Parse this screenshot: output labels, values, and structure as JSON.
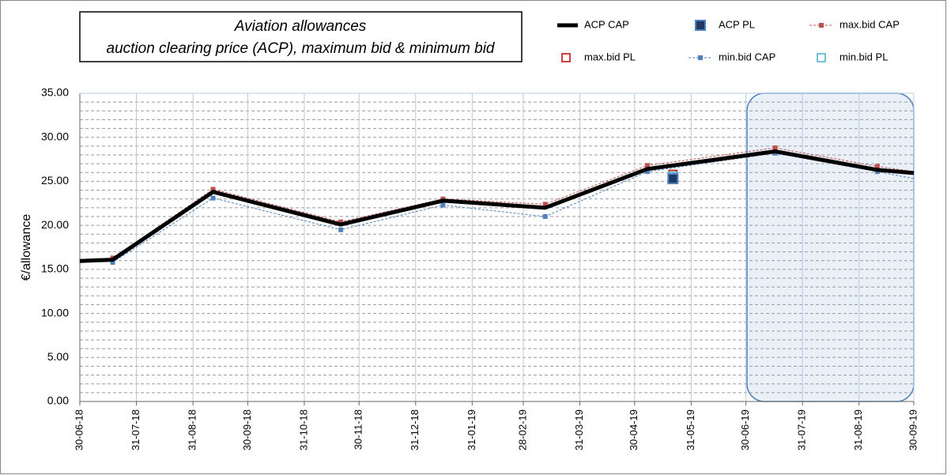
{
  "chart_data": {
    "type": "line",
    "title": [
      "Aviation allowances",
      "auction clearing price (ACP), maximum bid & minimum bid"
    ],
    "y_label": "€/allowance",
    "xlim": [
      "30-06-18",
      "30-09-19"
    ],
    "xticks": [
      "30-06-18",
      "31-07-18",
      "31-08-18",
      "30-09-18",
      "31-10-18",
      "30-11-18",
      "31-12-18",
      "31-01-19",
      "28-02-19",
      "31-03-19",
      "30-04-19",
      "31-05-19",
      "30-06-19",
      "31-07-19",
      "31-08-19",
      "30-09-19"
    ],
    "ylim": [
      0,
      35
    ],
    "yticks": [
      {
        "value": 0,
        "label": "0.00"
      },
      {
        "value": 5,
        "label": "5.00"
      },
      {
        "value": 10,
        "label": "10.00"
      },
      {
        "value": 15,
        "label": "15.00"
      },
      {
        "value": 20,
        "label": "20.00"
      },
      {
        "value": 25,
        "label": "25.00"
      },
      {
        "value": 30,
        "label": "30.00"
      },
      {
        "value": 35,
        "label": "35.00"
      }
    ],
    "grid": true,
    "legend": "top-right",
    "series": [
      {
        "name": "ACP CAP",
        "style": "thick-line",
        "color": "#000000",
        "x": [
          "30-06-18",
          "18-07-18",
          "11-09-18",
          "20-11-18",
          "15-01-19",
          "12-03-19",
          "07-05-19",
          "16-07-19",
          "10-09-19",
          "30-09-19"
        ],
        "values": [
          15.95,
          16.1,
          23.8,
          20.1,
          22.8,
          22.0,
          26.4,
          28.4,
          26.3,
          25.95
        ]
      },
      {
        "name": "ACP PL",
        "style": "filled-square",
        "color": "#1f3864",
        "x": [
          "21-05-19"
        ],
        "values": [
          25.3
        ]
      },
      {
        "name": "max.bid CAP",
        "style": "dashed-marker",
        "color": "#c0504d",
        "x": [
          "18-07-18",
          "11-09-18",
          "20-11-18",
          "15-01-19",
          "12-03-19",
          "07-05-19",
          "16-07-19",
          "10-09-19",
          "30-09-19"
        ],
        "values": [
          16.3,
          24.1,
          20.4,
          23.0,
          22.4,
          26.8,
          28.8,
          26.7,
          26.1
        ]
      },
      {
        "name": "max.bid PL",
        "style": "hollow-square",
        "color": "#c00000",
        "x": [
          "21-05-19"
        ],
        "values": [
          25.8
        ]
      },
      {
        "name": "min.bid CAP",
        "style": "dashed-marker",
        "color": "#4f81bd",
        "x": [
          "18-07-18",
          "11-09-18",
          "20-11-18",
          "15-01-19",
          "12-03-19",
          "07-05-19",
          "16-07-19",
          "10-09-19",
          "30-09-19"
        ],
        "values": [
          15.8,
          23.1,
          19.5,
          22.3,
          21.0,
          26.1,
          28.2,
          26.1,
          25.3
        ]
      },
      {
        "name": "min.bid PL",
        "style": "hollow-square",
        "color": "#4bacc6",
        "x": [
          "21-05-19"
        ],
        "values": [
          25.6
        ]
      }
    ]
  }
}
